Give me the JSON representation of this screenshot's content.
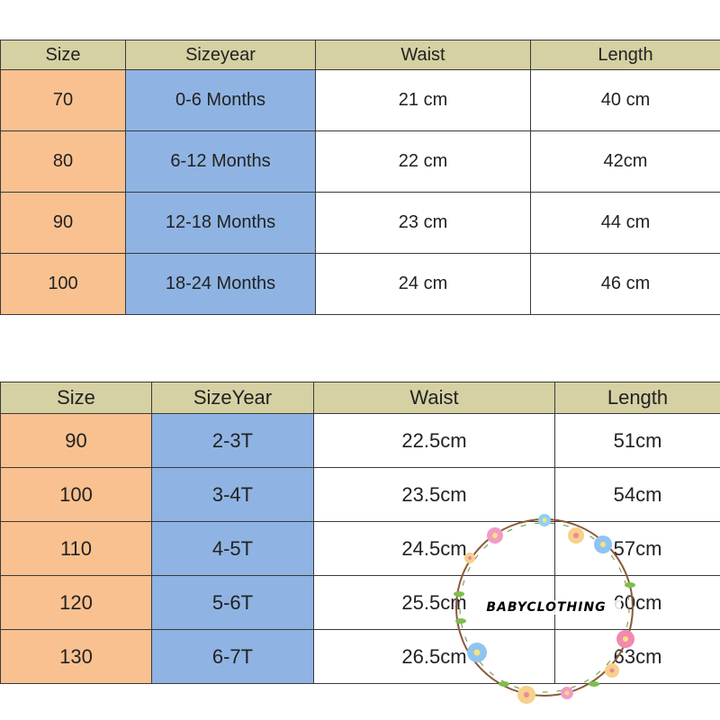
{
  "table1": {
    "headers": [
      "Size",
      "Sizeyear",
      "Waist",
      "Length"
    ],
    "rows": [
      [
        "70",
        "0-6 Months",
        "21 cm",
        "40 cm"
      ],
      [
        "80",
        "6-12 Months",
        "22 cm",
        "42cm"
      ],
      [
        "90",
        "12-18 Months",
        "23 cm",
        "44 cm"
      ],
      [
        "100",
        "18-24 Months",
        "24 cm",
        "46 cm"
      ]
    ]
  },
  "table2": {
    "headers": [
      "Size",
      "SizeYear",
      "Waist",
      "Length"
    ],
    "rows": [
      [
        "90",
        "2-3T",
        "22.5cm",
        "51cm"
      ],
      [
        "100",
        "3-4T",
        "23.5cm",
        "54cm"
      ],
      [
        "110",
        "4-5T",
        "24.5cm",
        "57cm"
      ],
      [
        "120",
        "5-6T",
        "25.5cm",
        "60cm"
      ],
      [
        "130",
        "6-7T",
        "26.5cm",
        "63cm"
      ]
    ]
  },
  "watermark": {
    "text": "BABYCLOTHING"
  },
  "colors": {
    "header_bg": "#d6d1a3",
    "size_col_bg": "#f9c190",
    "year_col_bg": "#8fb4e3",
    "border": "#3a3a3a"
  }
}
